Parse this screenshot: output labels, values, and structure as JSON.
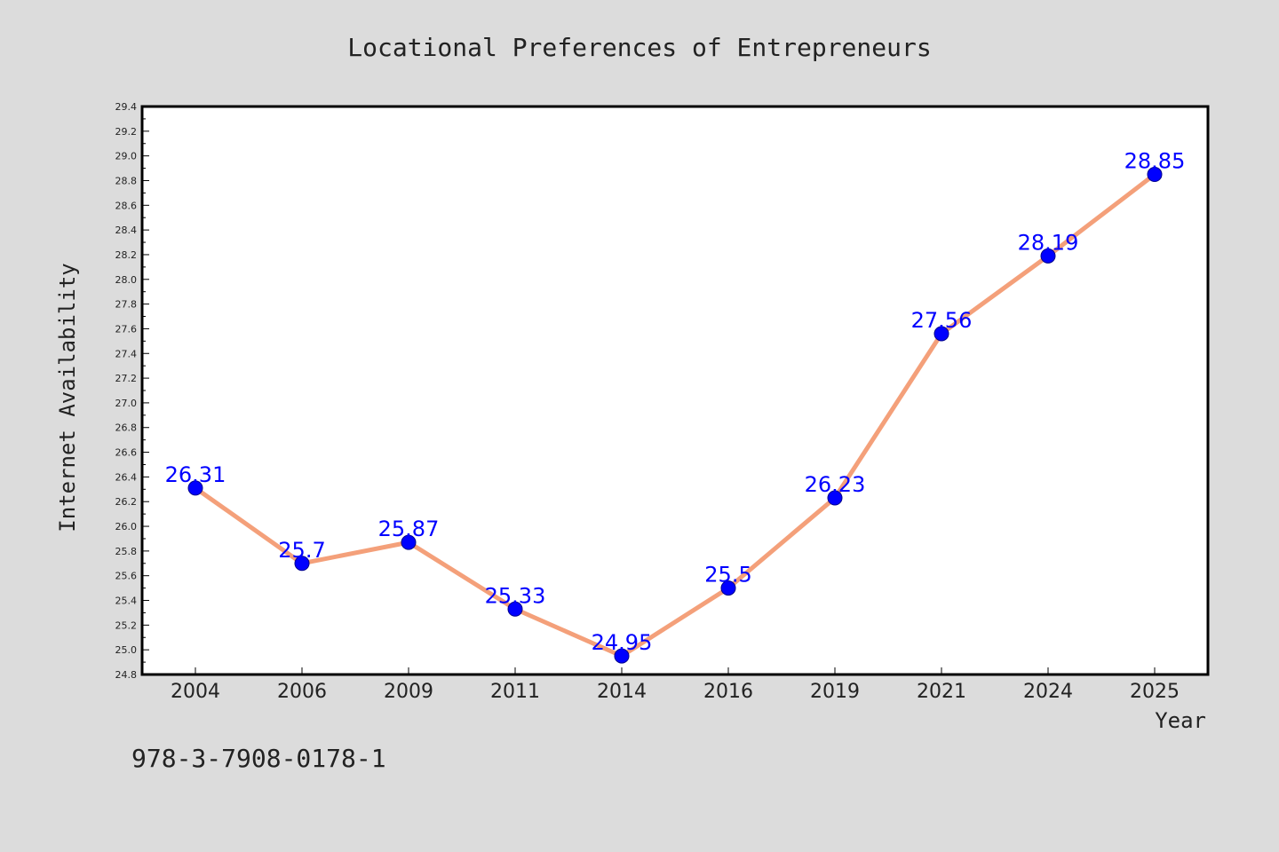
{
  "chart_data": {
    "type": "line",
    "title": "Locational Preferences of Entrepreneurs",
    "xlabel": "Year",
    "ylabel": "Internet Availability",
    "categories": [
      "2004",
      "2006",
      "2009",
      "2011",
      "2014",
      "2016",
      "2019",
      "2021",
      "2024",
      "2025"
    ],
    "series": [
      {
        "values": [
          26.31,
          25.7,
          25.87,
          25.33,
          24.95,
          25.5,
          26.23,
          27.56,
          28.19,
          28.85
        ],
        "labels": [
          "26.31",
          "25.7",
          "25.87",
          "25.33",
          "24.95",
          "25.5",
          "26.23",
          "27.56",
          "28.19",
          "28.85"
        ]
      }
    ],
    "ylim": [
      24.8,
      29.4
    ],
    "yticks": [
      24.8,
      25.0,
      25.2,
      25.4,
      25.6,
      25.8,
      26.0,
      26.2,
      26.4,
      26.6,
      26.8,
      27.0,
      27.2,
      27.4,
      27.6,
      27.8,
      28.0,
      28.2,
      28.4,
      28.6,
      28.8,
      29.0,
      29.2,
      29.4
    ],
    "ytick_labels": [
      "24.8",
      "25.0",
      "25.2",
      "25.4",
      "25.6",
      "25.8",
      "26.0",
      "26.2",
      "26.4",
      "26.6",
      "26.8",
      "27.0",
      "27.2",
      "27.4",
      "27.6",
      "27.8",
      "28.0",
      "28.2",
      "28.4",
      "28.6",
      "28.8",
      "29.0",
      "29.2",
      "29.4"
    ],
    "grid": false,
    "legend": "none",
    "colors": {
      "line": "#f4a07a",
      "marker": "#0000ff",
      "data_label": "#0000ff",
      "plot_background": "#ffffff",
      "figure_background": "#dcdcdc"
    }
  },
  "footer": {
    "isbn": "978-3-7908-0178-1"
  }
}
